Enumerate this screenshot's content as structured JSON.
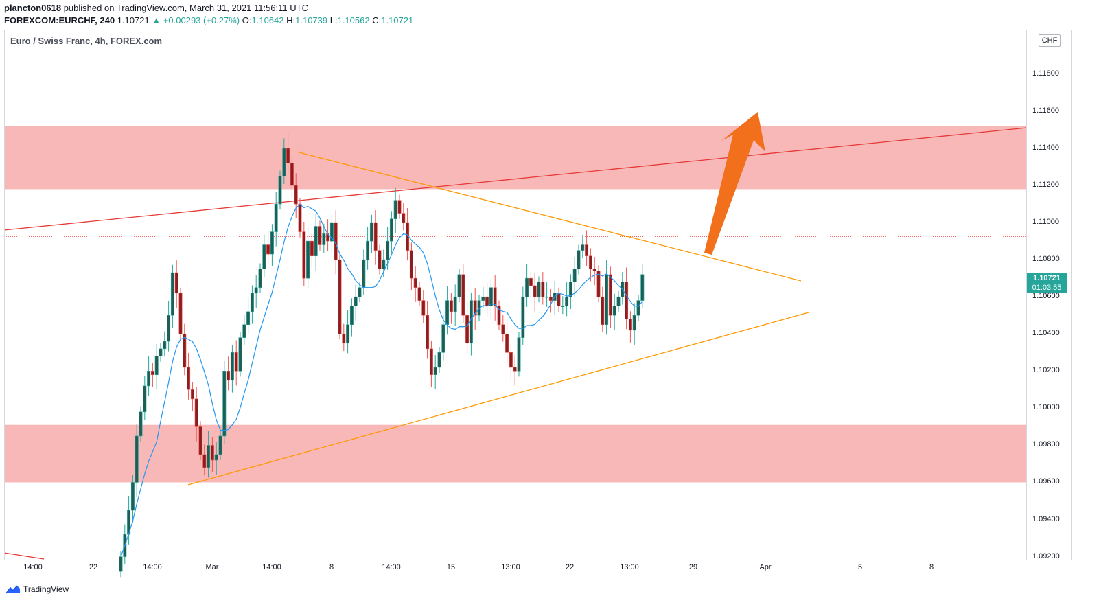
{
  "header": {
    "publisher": "plancton0618",
    "published_text": " published on TradingView.com, March 31, 2021 11:56:11 UTC",
    "symbol": "FOREXCOM:EURCHF, 240",
    "last": "1.10721",
    "change": "+0.00293 (+0.27%)",
    "o_label": "O:",
    "o_value": "1.10642",
    "h_label": "H:",
    "h_value": "1.10739",
    "l_label": "L:",
    "l_value": "1.10562",
    "c_label": "C:",
    "c_value": "1.10721"
  },
  "chart_title": "Euro / Swiss Franc, 4h, FOREX.com",
  "currency": "CHF",
  "price_tag": {
    "price": "1.10721",
    "countdown": "01:03:55"
  },
  "brand": "TradingView",
  "colors": {
    "up": "#26a69a",
    "down": "#ef5350",
    "body_up": "#1f5e55",
    "body_down": "#8b1f1f",
    "zone": "#f8b4b4",
    "ma": "#2196f3",
    "trend": "#e53935",
    "triangle": "#ff9800",
    "arrow": "#f26f1b"
  },
  "chart_data": {
    "type": "candlestick",
    "symbol": "FOREXCOM:EURCHF",
    "timeframe": "4h",
    "y_ticks": [
      "1.11800",
      "1.11600",
      "1.11400",
      "1.11200",
      "1.11000",
      "1.10800",
      "1.10600",
      "1.10400",
      "1.10200",
      "1.10000",
      "1.09800",
      "1.09600",
      "1.09400",
      "1.09200"
    ],
    "x_ticks": [
      "14:00",
      "22",
      "14:00",
      "Mar",
      "14:00",
      "8",
      "14:00",
      "15",
      "13:00",
      "22",
      "13:00",
      "29",
      "Apr",
      "5",
      "8"
    ],
    "ylim": [
      1.0918,
      1.1204
    ],
    "zones": [
      {
        "from": 1.1118,
        "to": 1.1152
      },
      {
        "from": 1.096,
        "to": 1.0991
      }
    ],
    "candles_close": [
      1.092,
      1.0932,
      1.0945,
      1.096,
      1.0985,
      1.0998,
      1.1012,
      1.102,
      1.1018,
      1.1028,
      1.1032,
      1.1036,
      1.105,
      1.1073,
      1.1062,
      1.104,
      1.1022,
      1.101,
      1.1005,
      1.099,
      1.0975,
      1.0968,
      1.098,
      1.0972,
      1.0975,
      1.0985,
      1.102,
      1.1015,
      1.103,
      1.102,
      1.1038,
      1.1045,
      1.1052,
      1.1062,
      1.1065,
      1.1075,
      1.1088,
      1.1083,
      1.1095,
      1.111,
      1.1125,
      1.114,
      1.1132,
      1.112,
      1.111,
      1.1095,
      1.107,
      1.109,
      1.1082,
      1.1098,
      1.1088,
      1.1094,
      1.109,
      1.11,
      1.108,
      1.104,
      1.1035,
      1.1045,
      1.1055,
      1.106,
      1.1065,
      1.108,
      1.109,
      1.11,
      1.1085,
      1.1075,
      1.108,
      1.109,
      1.1102,
      1.1112,
      1.1105,
      1.11,
      1.1085,
      1.107,
      1.1065,
      1.1058,
      1.105,
      1.1032,
      1.1018,
      1.1022,
      1.103,
      1.1045,
      1.1058,
      1.1052,
      1.106,
      1.1072,
      1.105,
      1.1035,
      1.1058,
      1.105,
      1.1058,
      1.106,
      1.1055,
      1.1065,
      1.1055,
      1.1045,
      1.104,
      1.103,
      1.1022,
      1.102,
      1.1038,
      1.106,
      1.107,
      1.1066,
      1.106,
      1.1068,
      1.106,
      1.106,
      1.1058,
      1.1062,
      1.1055,
      1.1055,
      1.106,
      1.1068,
      1.1075,
      1.1085,
      1.1088,
      1.1082,
      1.1075,
      1.1074,
      1.106,
      1.1045,
      1.1072,
      1.105,
      1.1055,
      1.106,
      1.1068,
      1.1048,
      1.1042,
      1.105,
      1.1058,
      1.1072
    ],
    "indicators": [
      "moving average (blue)"
    ],
    "drawings": [
      "red rising trendline",
      "orange symmetrical triangle",
      "two red supply/demand zones",
      "orange up arrow"
    ]
  }
}
